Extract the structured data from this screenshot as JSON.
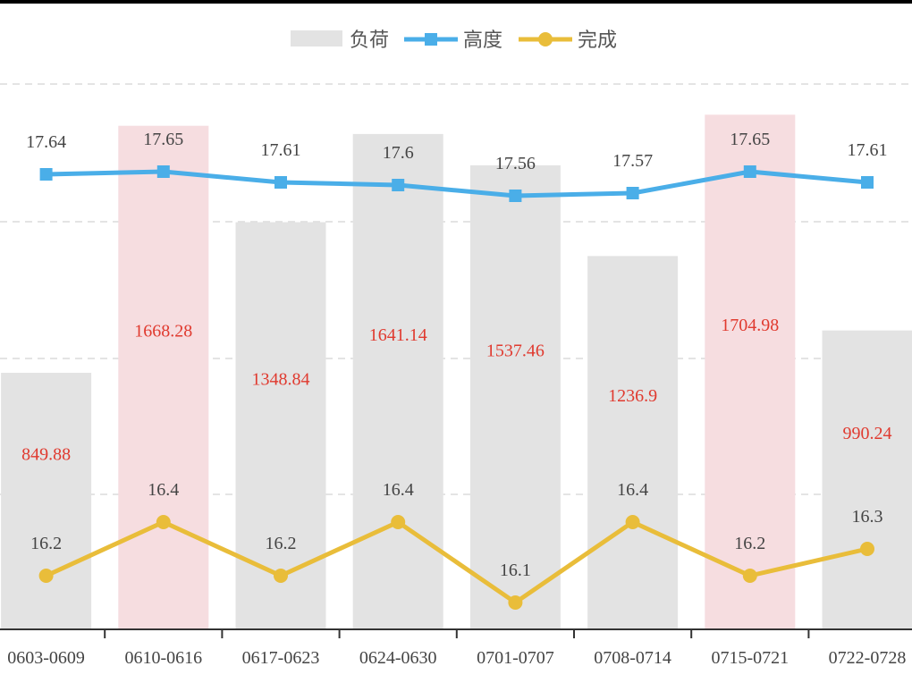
{
  "chart_data": {
    "type": "bar",
    "categories": [
      "0603-0609",
      "0610-0616",
      "0617-0623",
      "0624-0630",
      "0701-0707",
      "0708-0714",
      "0715-0721",
      "0722-0728"
    ],
    "legend_position": "top-center",
    "grid": true,
    "series": [
      {
        "name": "负荷",
        "type": "bar",
        "values": [
          849.88,
          1668.28,
          1348.84,
          1641.14,
          1537.46,
          1236.9,
          1704.98,
          990.24
        ],
        "labels": [
          "849.88",
          "1668.28",
          "1348.84",
          "1641.14",
          "1537.46",
          "1236.9",
          "1704.98",
          "990.24"
        ],
        "color": "#e3e3e3",
        "highlight_color": "#f6dde0",
        "highlighted": [
          false,
          true,
          false,
          false,
          false,
          false,
          true,
          false
        ],
        "label_color": "#e03a2f"
      },
      {
        "name": "高度",
        "type": "line",
        "marker": "square",
        "values": [
          17.64,
          17.65,
          17.61,
          17.6,
          17.56,
          17.57,
          17.65,
          17.61
        ],
        "labels": [
          "17.64",
          "17.65",
          "17.61",
          "17.6",
          "17.56",
          "17.57",
          "17.65",
          "17.61"
        ],
        "color": "#4aaee8"
      },
      {
        "name": "完成",
        "type": "line",
        "marker": "circle",
        "values": [
          16.2,
          16.4,
          16.2,
          16.4,
          16.1,
          16.4,
          16.2,
          16.3
        ],
        "labels": [
          "16.2",
          "16.4",
          "16.2",
          "16.4",
          "16.1",
          "16.4",
          "16.2",
          "16.3"
        ],
        "color": "#e9bd3a"
      }
    ]
  }
}
